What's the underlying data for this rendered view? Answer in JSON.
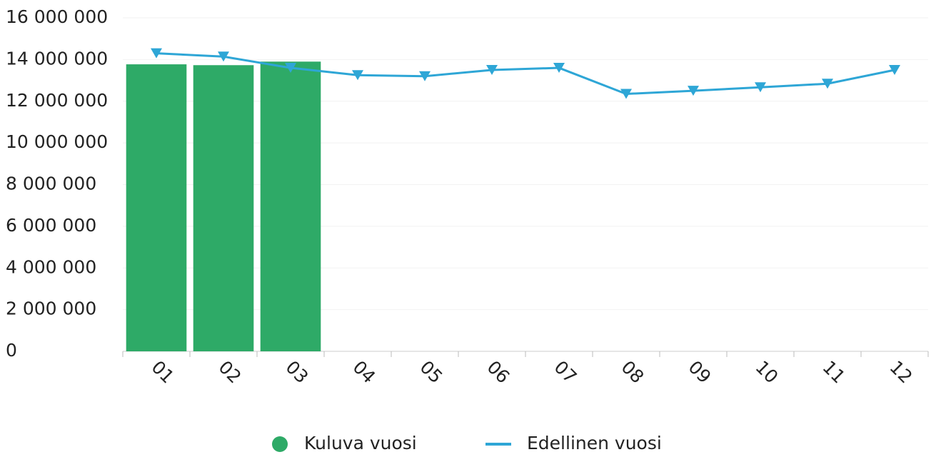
{
  "chart_data": {
    "type": "combo",
    "categories": [
      "01",
      "02",
      "03",
      "04",
      "05",
      "06",
      "07",
      "08",
      "09",
      "10",
      "11",
      "12"
    ],
    "series": [
      {
        "name": "Kuluva vuosi",
        "type": "bar",
        "color": "#2eaa67",
        "values": [
          13770000,
          13730000,
          13900000,
          null,
          null,
          null,
          null,
          null,
          null,
          null,
          null,
          null
        ]
      },
      {
        "name": "Edellinen vuosi",
        "type": "line",
        "color": "#2ea6d6",
        "values": [
          14300000,
          14140000,
          13600000,
          13250000,
          13200000,
          13500000,
          13600000,
          12350000,
          12500000,
          12670000,
          12840000,
          13500000
        ]
      }
    ],
    "ylim": [
      0,
      16000000
    ],
    "yticks": [
      {
        "value": 0,
        "label": "0"
      },
      {
        "value": 2000000,
        "label": "2 000 000"
      },
      {
        "value": 4000000,
        "label": "4 000 000"
      },
      {
        "value": 6000000,
        "label": "6 000 000"
      },
      {
        "value": 8000000,
        "label": "8 000 000"
      },
      {
        "value": 10000000,
        "label": "10 000 000"
      },
      {
        "value": 12000000,
        "label": "12 000 000"
      },
      {
        "value": 14000000,
        "label": "14 000 000"
      },
      {
        "value": 16000000,
        "label": "16 000 000"
      }
    ],
    "grid": true,
    "legend": "bottom"
  }
}
